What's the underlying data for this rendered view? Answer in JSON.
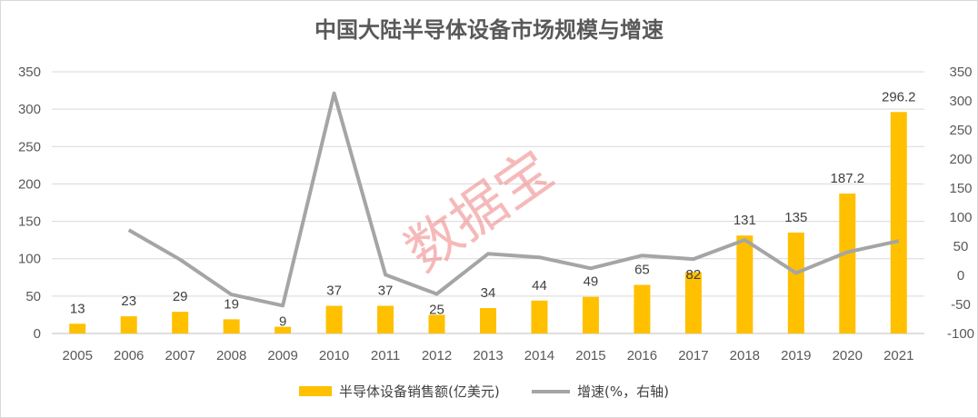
{
  "chart_data": {
    "type": "bar",
    "title": "中国大陆半导体设备市场规模与增速",
    "categories": [
      "2005",
      "2006",
      "2007",
      "2008",
      "2009",
      "2010",
      "2011",
      "2012",
      "2013",
      "2014",
      "2015",
      "2016",
      "2017",
      "2018",
      "2019",
      "2020",
      "2021"
    ],
    "series": [
      {
        "name": "半导体设备销售额(亿美元)",
        "type": "bar",
        "axis": "left",
        "color": "#FFC000",
        "values": [
          13,
          23,
          29,
          19,
          9,
          37,
          37,
          25,
          34,
          44,
          49,
          65,
          82,
          131,
          135,
          187.2,
          296.2
        ],
        "labels": [
          "13",
          "23",
          "29",
          "19",
          "9",
          "37",
          "37",
          "25",
          "34",
          "44",
          "49",
          "65",
          "82",
          "131",
          "135",
          "187.2",
          "296.2"
        ]
      },
      {
        "name": "增速(%，右轴)",
        "type": "line",
        "axis": "right",
        "color": "#A5A5A5",
        "values": [
          null,
          78,
          27,
          -33,
          -52,
          313,
          1,
          -32,
          37,
          31,
          12,
          34,
          28,
          61,
          4,
          40,
          59
        ]
      }
    ],
    "left_axis": {
      "min": 0,
      "max": 350,
      "step": 50,
      "ticks": [
        "0",
        "50",
        "100",
        "150",
        "200",
        "250",
        "300",
        "350"
      ]
    },
    "right_axis": {
      "min": -100,
      "max": 350,
      "step": 50,
      "ticks": [
        "-100",
        "-50",
        "0",
        "50",
        "100",
        "150",
        "200",
        "250",
        "300",
        "350"
      ]
    },
    "grid": true,
    "legend_position": "bottom",
    "watermark": "数据宝"
  }
}
